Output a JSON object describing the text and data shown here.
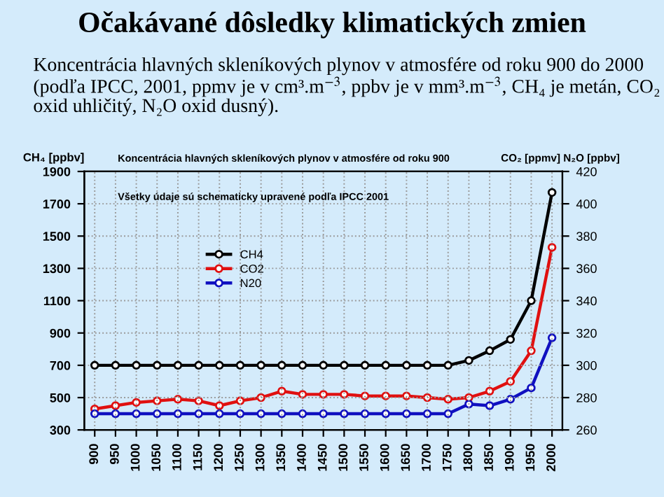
{
  "chart_data": {
    "type": "line",
    "title": "Očakávané dôsledky klimatických zmien",
    "subtitle": "Koncentrácia hlavných skleníkových plynov v atmosfére od roku 900 do 2000 (podľa IPCC, 2001, ppmv je v cm³.m$^{−3}$, ppbv je v mm³.m$^{−3}$, CH₄ je metán, CO₂ oxid uhličitý, N₂O oxid dusný).",
    "annotations": [
      "Koncentrácia hlavných skleníkových plynov v atmosfére od roku 900",
      "Všetky údaje sú schematicky upravené podľa IPCC 2001"
    ],
    "ylabel": "CH₄ [ppbv]",
    "y2label": "CO₂ [ppmv] N₂O [ppbv]",
    "categories": [
      "900",
      "950",
      "1000",
      "1050",
      "1100",
      "1150",
      "1200",
      "1250",
      "1300",
      "1350",
      "1400",
      "1450",
      "1500",
      "1550",
      "1600",
      "1650",
      "1700",
      "1750",
      "1800",
      "1850",
      "1900",
      "1950",
      "2000"
    ],
    "series": [
      {
        "name": "CH4",
        "color": "#000000",
        "values": [
          700,
          700,
          700,
          700,
          700,
          700,
          700,
          700,
          700,
          700,
          700,
          700,
          700,
          700,
          700,
          700,
          700,
          700,
          730,
          790,
          860,
          1100,
          1770
        ]
      },
      {
        "name": "CO2",
        "color": "#e01010",
        "axis": "y2",
        "values": [
          273,
          275,
          277,
          278,
          279,
          278,
          275,
          278,
          280,
          284,
          282,
          282,
          282,
          281,
          281,
          281,
          280,
          279,
          280,
          284,
          290,
          309,
          373
        ]
      },
      {
        "name": "N20",
        "color": "#1010c0",
        "axis": "y2",
        "values": [
          270,
          270,
          270,
          270,
          270,
          270,
          270,
          270,
          270,
          270,
          270,
          270,
          270,
          270,
          270,
          270,
          270,
          270,
          276,
          275,
          279,
          286,
          317
        ]
      }
    ],
    "ylim": [
      300,
      1900
    ],
    "yticks": [
      300,
      500,
      700,
      900,
      1100,
      1300,
      1500,
      1700,
      1900
    ],
    "y2lim": [
      260,
      420
    ],
    "y2ticks": [
      260,
      280,
      300,
      320,
      340,
      360,
      380,
      400,
      420
    ],
    "grid": true,
    "legend": "center",
    "marker": "circle",
    "line_style": "solid"
  }
}
